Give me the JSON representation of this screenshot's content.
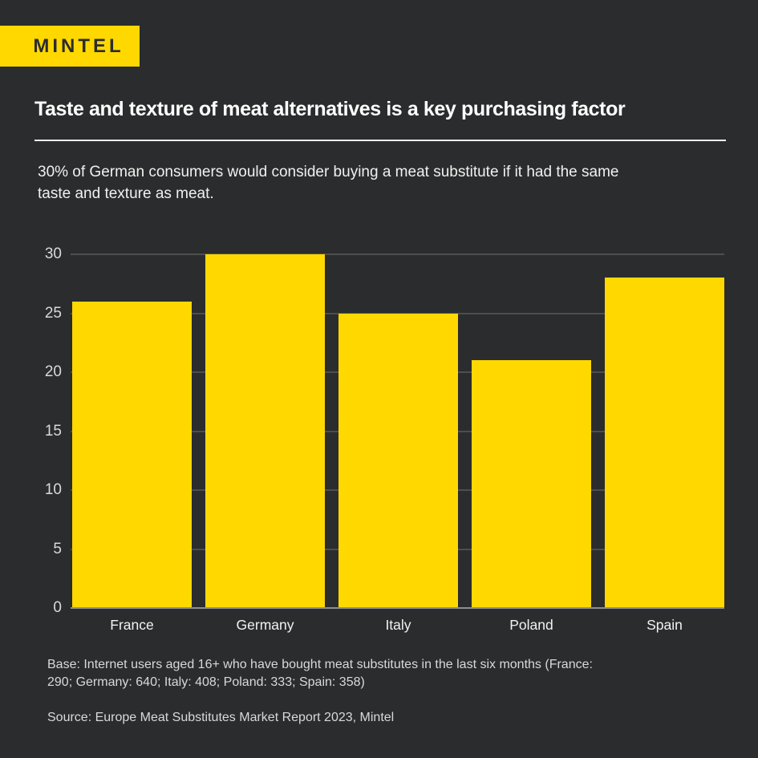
{
  "header": {
    "logo_text": "MINTEL",
    "title": "Taste and texture of meat alternatives is a key purchasing factor",
    "subtitle_lines": [
      "30% of German consumers would consider buying a meat substitute if it had the same",
      "taste and texture as meat."
    ]
  },
  "chart_data": {
    "type": "bar",
    "categories": [
      "France",
      "Germany",
      "Italy",
      "Poland",
      "Spain"
    ],
    "values": [
      26,
      30,
      25,
      21,
      28
    ],
    "title": "",
    "xlabel": "",
    "ylabel": "",
    "ylim": [
      0,
      30
    ],
    "yticks": [
      0,
      5,
      10,
      15,
      20,
      25,
      30
    ],
    "grid": true,
    "legend": false,
    "bar_color": "#ffd800",
    "gridline_color": "#4e4e4e",
    "baseline_color": "#8f8f8f"
  },
  "footer": {
    "base_lines": [
      "Base: Internet users aged 16+ who have bought meat substitutes in the last six months (France:",
      "290; Germany: 640; Italy: 408; Poland: 333; Spain: 358)"
    ],
    "source": "Source: Europe Meat Substitutes Market Report 2023, Mintel"
  },
  "colors": {
    "background": "#2b2c2d",
    "accent_yellow": "#ffd800",
    "text_primary": "#ffffff",
    "text_secondary": "#d9d9d9"
  }
}
